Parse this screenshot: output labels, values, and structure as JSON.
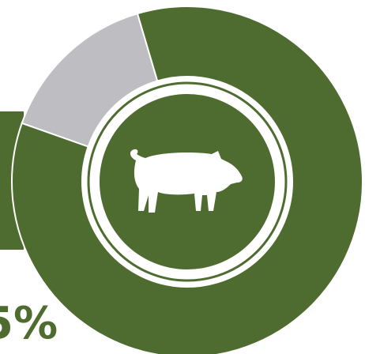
{
  "chart_data": {
    "type": "pie",
    "style": "donut",
    "values": [
      85,
      15
    ],
    "colors": [
      "#4e6c30",
      "#bdbdc2"
    ],
    "label": "5%"
  },
  "colors": {
    "primary": "#4e6c30",
    "remainder": "#bdbdc2",
    "background": "#ffffff"
  },
  "center_icon": "pig-icon"
}
